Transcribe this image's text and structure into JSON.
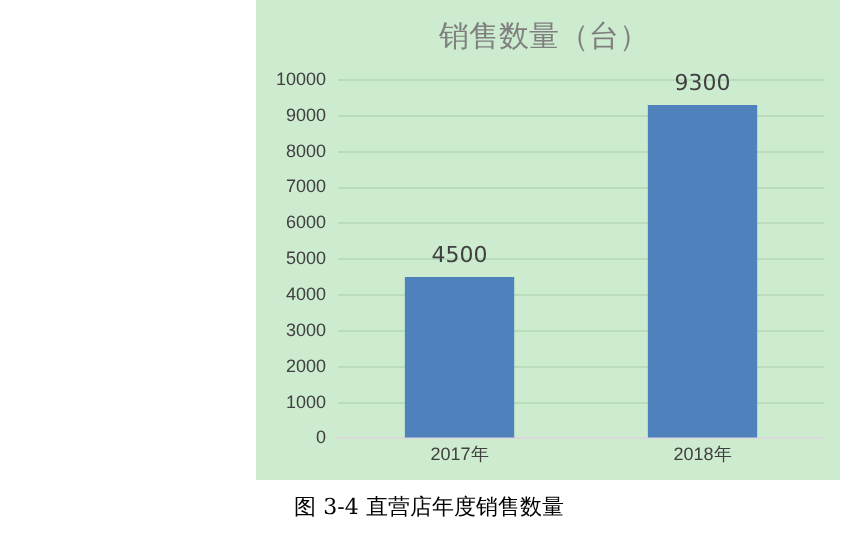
{
  "chart_data": {
    "type": "bar",
    "title": "销售数量（台）",
    "categories": [
      "2017年",
      "2018年"
    ],
    "values": [
      4500,
      9300
    ],
    "color": "#4f81bd",
    "ylim": [
      0,
      10000
    ],
    "yticks": [
      0,
      1000,
      2000,
      3000,
      4000,
      5000,
      6000,
      7000,
      8000,
      9000,
      10000
    ],
    "grid": "y",
    "legend": false,
    "data_labels": true,
    "annotations": [
      "图 3-4 直营店年度销售数量"
    ]
  }
}
